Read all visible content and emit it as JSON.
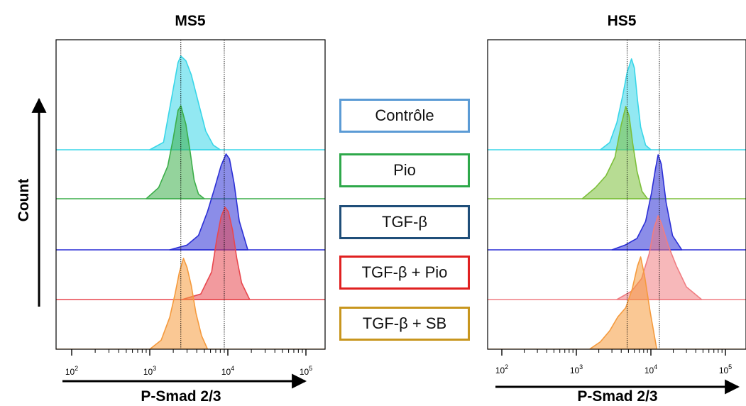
{
  "y_axis_label": "Count",
  "chart_data": [
    {
      "type": "area",
      "title": "MS5",
      "xlabel": "P-Smad 2/3",
      "ylabel": "Count",
      "x_scale": "log",
      "xlim": [
        100,
        150000
      ],
      "x_ticks": [
        "10^2",
        "10^3",
        "10^4",
        "10^5"
      ],
      "reference_lines_x": [
        2500,
        9000
      ],
      "series": [
        {
          "name": "Contrôle",
          "color": "#38d6e8",
          "x": [
            1000,
            1500,
            1900,
            2300,
            2500,
            2900,
            3400,
            4200,
            5200,
            6500,
            8000
          ],
          "y": [
            0,
            0.08,
            0.55,
            0.93,
            1.0,
            0.95,
            0.8,
            0.5,
            0.2,
            0.05,
            0
          ]
        },
        {
          "name": "Pio",
          "color": "#3cae4a",
          "x": [
            900,
            1300,
            1700,
            2000,
            2300,
            2500,
            2900,
            3300,
            3700,
            4200,
            5000
          ],
          "y": [
            0,
            0.12,
            0.35,
            0.65,
            0.95,
            1.0,
            0.8,
            0.5,
            0.2,
            0.05,
            0
          ]
        },
        {
          "name": "TGF-β",
          "color": "#2b2fd6",
          "x": [
            1800,
            3000,
            4200,
            5500,
            6800,
            8200,
            9500,
            10500,
            12000,
            14000,
            18000
          ],
          "y": [
            0,
            0.05,
            0.15,
            0.4,
            0.65,
            0.88,
            1.0,
            0.95,
            0.7,
            0.3,
            0
          ]
        },
        {
          "name": "TGF-β + Pio",
          "color": "#e8474e",
          "x": [
            2600,
            4500,
            6200,
            7200,
            8200,
            9200,
            10200,
            11500,
            13000,
            15000,
            19000
          ],
          "y": [
            0,
            0.06,
            0.3,
            0.65,
            0.9,
            1.0,
            0.95,
            0.75,
            0.45,
            0.18,
            0
          ]
        },
        {
          "name": "TGF-β + SB",
          "color": "#f59a3d",
          "x": [
            1000,
            1400,
            1800,
            2100,
            2400,
            2700,
            3000,
            3400,
            3900,
            4600,
            5500
          ],
          "y": [
            0,
            0.1,
            0.35,
            0.6,
            0.85,
            1.0,
            0.9,
            0.7,
            0.4,
            0.15,
            0
          ]
        }
      ]
    },
    {
      "type": "area",
      "title": "HS5",
      "xlabel": "P-Smad 2/3",
      "ylabel": "Count",
      "x_scale": "log",
      "xlim": [
        100,
        150000
      ],
      "x_ticks": [
        "10^2",
        "10^3",
        "10^4",
        "10^5"
      ],
      "reference_lines_x": [
        4800,
        13000
      ],
      "series": [
        {
          "name": "Contrôle",
          "color": "#38d6e8",
          "x": [
            2100,
            2800,
            3500,
            4200,
            4800,
            5500,
            6000,
            6600,
            7300,
            8500,
            10000
          ],
          "y": [
            0,
            0.08,
            0.3,
            0.6,
            0.85,
            1.0,
            0.9,
            0.55,
            0.25,
            0.05,
            0
          ]
        },
        {
          "name": "Pio",
          "color": "#7cbf3a",
          "x": [
            1200,
            1800,
            2500,
            3300,
            4000,
            4600,
            5100,
            5700,
            6500,
            7600,
            9000
          ],
          "y": [
            0,
            0.12,
            0.25,
            0.45,
            0.8,
            1.0,
            0.9,
            0.6,
            0.3,
            0.08,
            0
          ]
        },
        {
          "name": "TGF-β",
          "color": "#2b2fd6",
          "x": [
            3000,
            4500,
            6500,
            8500,
            10200,
            11500,
            12500,
            13800,
            16000,
            19500,
            26000
          ],
          "y": [
            0,
            0.05,
            0.12,
            0.3,
            0.6,
            0.85,
            1.0,
            0.9,
            0.5,
            0.15,
            0
          ]
        },
        {
          "name": "TGF-β + Pio",
          "color": "#f07d82",
          "x": [
            3500,
            5500,
            7500,
            9500,
            11000,
            12500,
            14000,
            17000,
            22000,
            30000,
            48000
          ],
          "y": [
            0,
            0.1,
            0.25,
            0.55,
            0.85,
            1.0,
            0.9,
            0.65,
            0.4,
            0.15,
            0
          ]
        },
        {
          "name": "TGF-β + SB",
          "color": "#f59a3d",
          "x": [
            1500,
            2100,
            2800,
            3600,
            4600,
            5600,
            6600,
            7300,
            8200,
            9800,
            12000
          ],
          "y": [
            0,
            0.08,
            0.2,
            0.35,
            0.45,
            0.65,
            0.9,
            1.0,
            0.8,
            0.4,
            0
          ]
        }
      ]
    }
  ]
}
